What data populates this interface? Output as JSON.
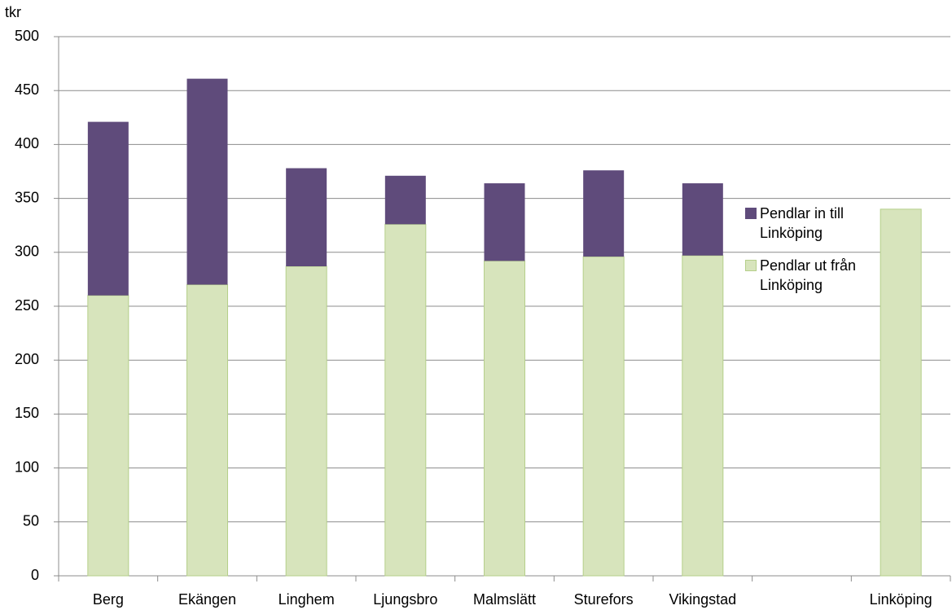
{
  "chart_data": {
    "type": "stacked_bar",
    "y_label": "tkr",
    "categories": [
      "Berg",
      "Ekängen",
      "Linghem",
      "Ljungsbro",
      "Malmslätt",
      "Sturefors",
      "Vikingstad",
      null,
      "Linköping"
    ],
    "series": [
      {
        "name": "Pendlar ut från Linköping",
        "color": "#d7e4bc",
        "values": [
          260,
          270,
          287,
          326,
          292,
          296,
          297,
          null,
          340
        ]
      },
      {
        "name": "Pendlar in till Linköping",
        "color": "#5f4b7b",
        "values": [
          161,
          191,
          91,
          45,
          72,
          80,
          67,
          null,
          null
        ]
      }
    ],
    "ylim": [
      0,
      500
    ],
    "yticks": [
      0,
      50,
      100,
      150,
      200,
      250,
      300,
      350,
      400,
      450,
      500
    ],
    "grid": true,
    "legend": "right"
  }
}
